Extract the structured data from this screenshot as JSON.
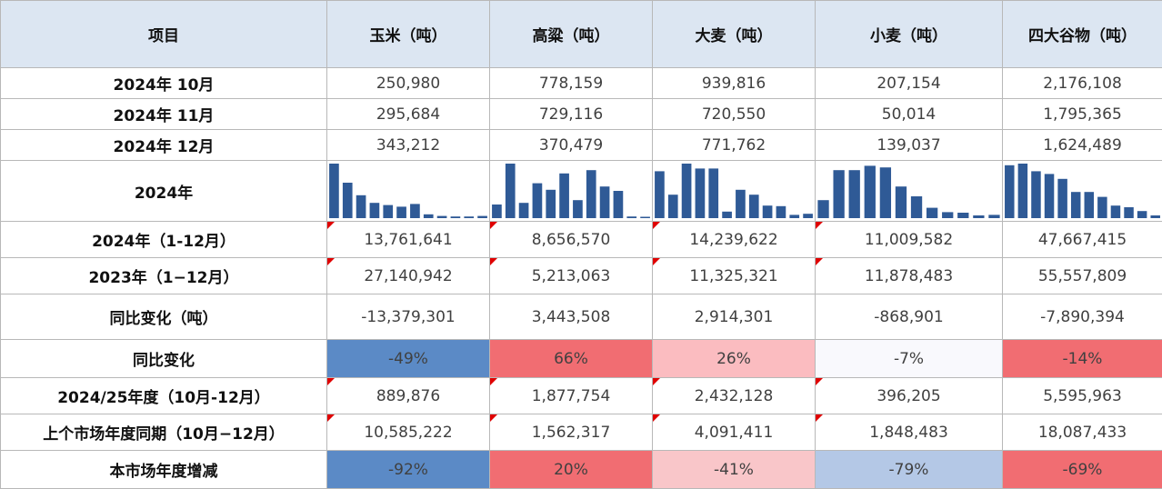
{
  "header": [
    "项目",
    "玉米（吨）",
    "高粱（吨）",
    "大麦（吨）",
    "小麦（吨）",
    "四大谷物（吨）"
  ],
  "rows": [
    {
      "label": "2024年 10月",
      "values": [
        "250,980",
        "778,159",
        "939,816",
        "207,154",
        "2,176,108"
      ]
    },
    {
      "label": "2024年 11月",
      "values": [
        "295,684",
        "729,116",
        "720,550",
        "50,014",
        "1,795,365"
      ]
    },
    {
      "label": "2024年 12月",
      "values": [
        "343,212",
        "370,479",
        "771,762",
        "139,037",
        "1,624,489"
      ]
    }
  ],
  "spark_row": {
    "label": "2024年",
    "bar_color": "#2f5a96",
    "series": [
      [
        100,
        65,
        42,
        28,
        24,
        21,
        26,
        7,
        4,
        3,
        3,
        4
      ],
      [
        25,
        100,
        28,
        64,
        52,
        82,
        33,
        88,
        58,
        50,
        3,
        0
      ],
      [
        86,
        43,
        100,
        91,
        91,
        12,
        52,
        43,
        23,
        22,
        6,
        8
      ],
      [
        33,
        88,
        88,
        96,
        93,
        58,
        40,
        19,
        11,
        10,
        5,
        6
      ],
      [
        97,
        100,
        86,
        81,
        72,
        48,
        48,
        39,
        23,
        20,
        13,
        5
      ]
    ]
  },
  "rows2": [
    {
      "label": "2024年（1-12月）",
      "flag": true,
      "values": [
        "13,761,641",
        "8,656,570",
        "14,239,622",
        "11,009,582",
        "47,667,415"
      ]
    },
    {
      "label": "2023年（1−12月）",
      "flag": true,
      "values": [
        "27,140,942",
        "5,213,063",
        "11,325,321",
        "11,878,483",
        "55,557,809"
      ]
    },
    {
      "label": "同比变化（吨）",
      "flag": false,
      "values": [
        "-13,379,301",
        "3,443,508",
        "2,914,301",
        "-868,901",
        "-7,890,394"
      ]
    }
  ],
  "pct_row": {
    "label": "同比变化",
    "values": [
      "-49%",
      "66%",
      "26%",
      "-7%",
      "-14%"
    ],
    "colors": [
      "#5b8ac6",
      "#f16d72",
      "#fbbcc0",
      "#f9f9fd",
      "#f16d72"
    ]
  },
  "rows3": [
    {
      "label": "2024/25年度（10月-12月）",
      "flag": true,
      "values": [
        "889,876",
        "1,877,754",
        "2,432,128",
        "396,205",
        "5,595,963"
      ]
    },
    {
      "label": "上个市场年度同期（10月−12月）",
      "flag": true,
      "values": [
        "10,585,222",
        "1,562,317",
        "4,091,411",
        "1,848,483",
        "18,087,433"
      ]
    }
  ],
  "pct_row2": {
    "label": "本市场年度增减",
    "values": [
      "-92%",
      "20%",
      "-41%",
      "-79%",
      "-69%"
    ],
    "colors": [
      "#5b8ac6",
      "#f16d72",
      "#f9c6c9",
      "#b4c8e6",
      "#f16d72"
    ]
  },
  "flag_color": "#e00000"
}
